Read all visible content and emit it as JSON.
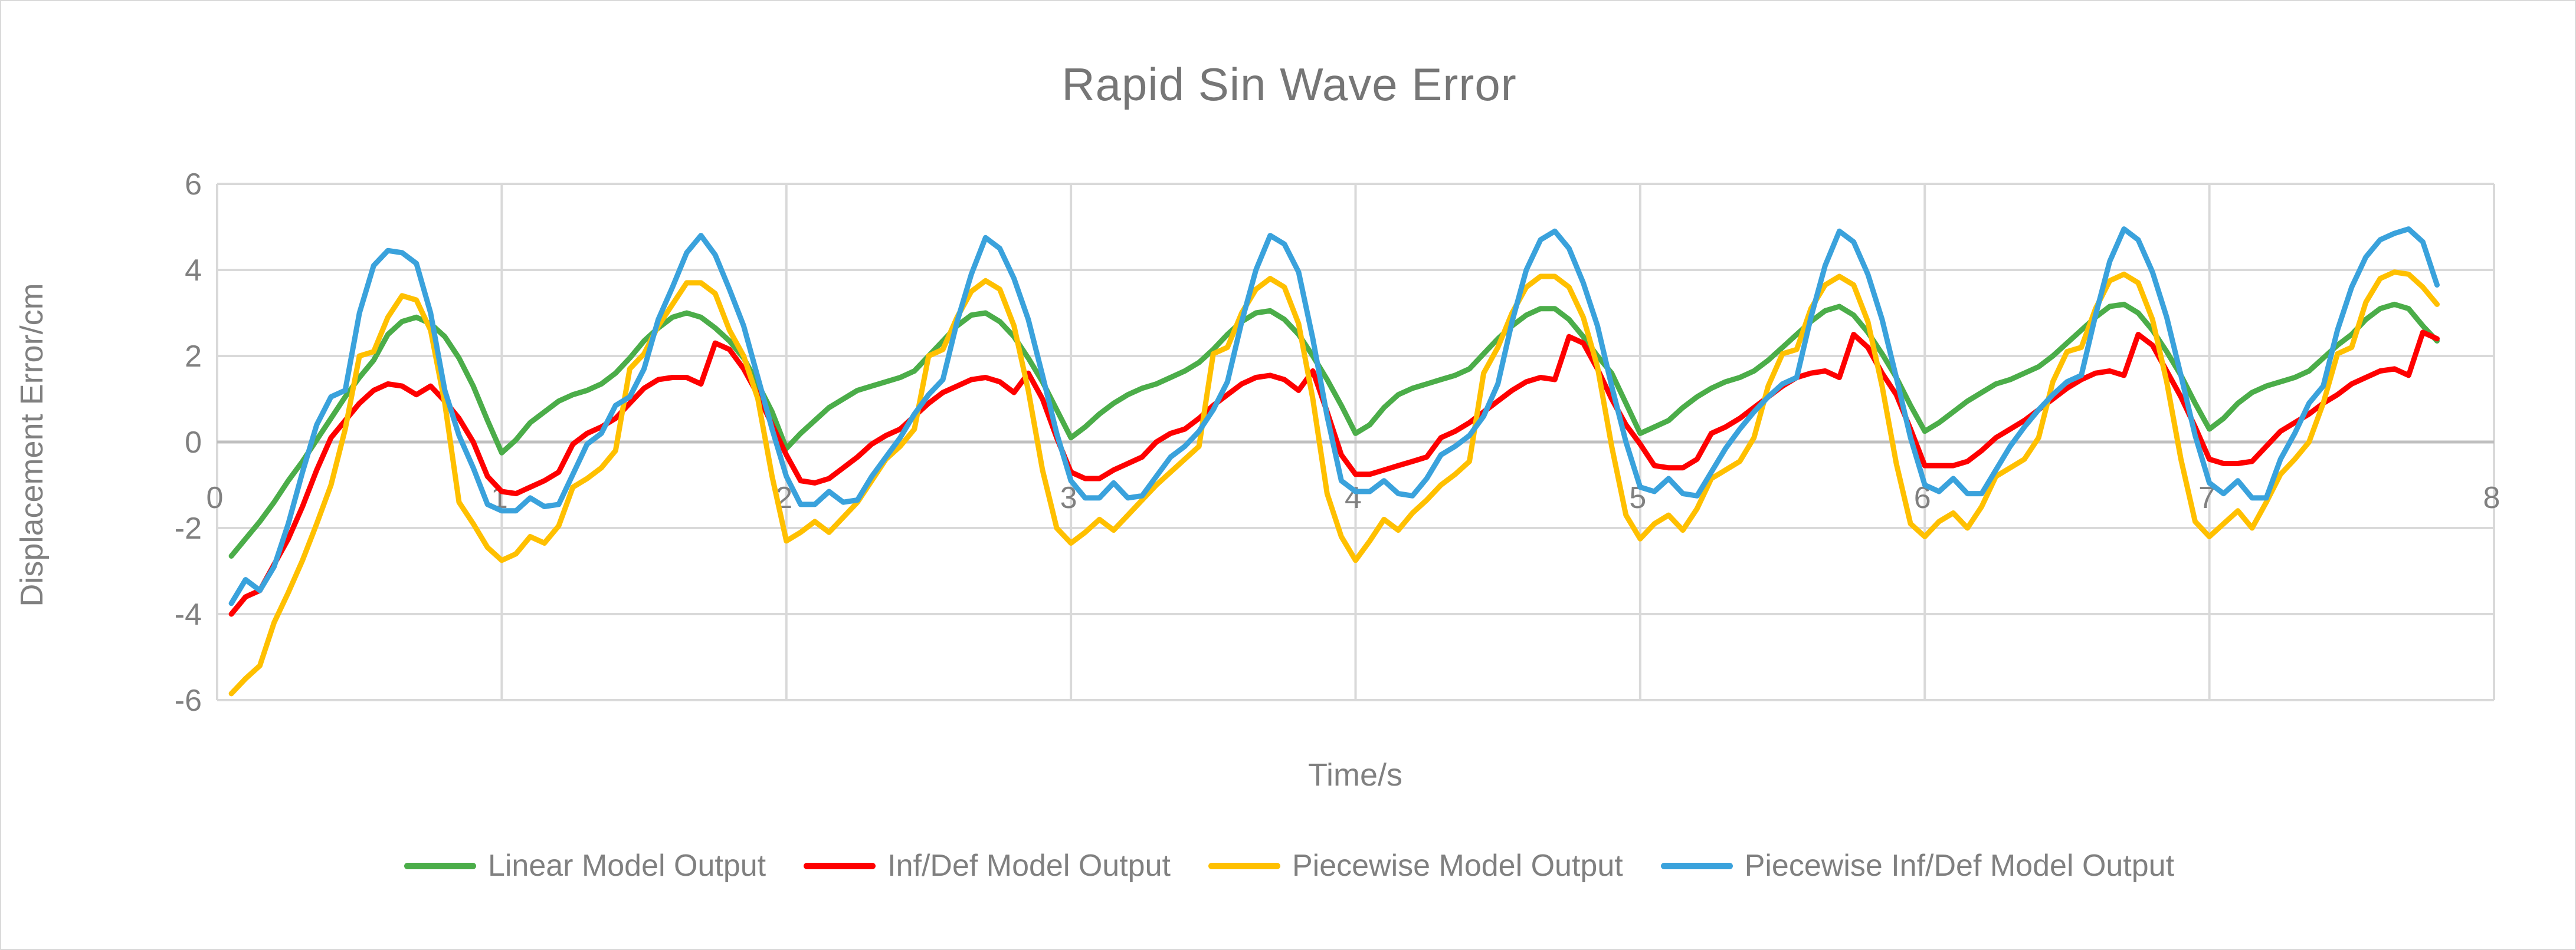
{
  "title": "Rapid Sin Wave Error",
  "colors": {
    "grid": "#d9d9d9",
    "zero_line": "#bfbfbf",
    "text": "#808080",
    "title_text": "#767676",
    "background": "#ffffff",
    "series_green": "#4bad49",
    "series_red": "#fe0000",
    "series_gold": "#ffc000",
    "series_blue": "#3aa2dc"
  },
  "chart_data": {
    "type": "line",
    "title": "Rapid Sin Wave Error",
    "xlabel": "Time/s",
    "ylabel": "Displacement Error/cm",
    "xlim": [
      0,
      8
    ],
    "ylim": [
      -6,
      6
    ],
    "x_ticks": [
      0,
      1,
      2,
      3,
      4,
      5,
      6,
      7,
      8
    ],
    "y_ticks": [
      -6,
      -4,
      -2,
      0,
      2,
      4,
      6
    ],
    "grid": true,
    "legend_position": "bottom",
    "x_start": 0.05,
    "x_step": 0.05,
    "x_end": 7.8,
    "series": [
      {
        "name": "Linear Model Output",
        "color": "#4bad49",
        "values": [
          -2.65,
          -2.25,
          -1.85,
          -1.4,
          -0.9,
          -0.45,
          0.05,
          0.55,
          1.05,
          1.5,
          1.9,
          2.5,
          2.8,
          2.9,
          2.75,
          2.45,
          1.95,
          1.3,
          0.5,
          -0.25,
          0.05,
          0.45,
          0.7,
          0.95,
          1.1,
          1.2,
          1.35,
          1.6,
          1.95,
          2.35,
          2.65,
          2.9,
          3.0,
          2.9,
          2.65,
          2.35,
          1.95,
          1.35,
          0.7,
          -0.15,
          0.2,
          0.5,
          0.8,
          1.0,
          1.2,
          1.3,
          1.4,
          1.5,
          1.65,
          2.0,
          2.35,
          2.7,
          2.95,
          3.0,
          2.8,
          2.45,
          1.95,
          1.4,
          0.75,
          0.1,
          0.35,
          0.65,
          0.9,
          1.1,
          1.25,
          1.35,
          1.5,
          1.65,
          1.85,
          2.15,
          2.5,
          2.8,
          3.0,
          3.05,
          2.85,
          2.5,
          2.0,
          1.45,
          0.85,
          0.2,
          0.4,
          0.8,
          1.1,
          1.25,
          1.35,
          1.45,
          1.55,
          1.7,
          2.05,
          2.4,
          2.7,
          2.95,
          3.1,
          3.1,
          2.85,
          2.45,
          2.0,
          1.6,
          0.9,
          0.2,
          0.35,
          0.5,
          0.8,
          1.05,
          1.25,
          1.4,
          1.5,
          1.65,
          1.9,
          2.2,
          2.5,
          2.8,
          3.05,
          3.15,
          2.95,
          2.55,
          2.05,
          1.5,
          0.85,
          0.25,
          0.45,
          0.7,
          0.95,
          1.15,
          1.35,
          1.45,
          1.6,
          1.75,
          2.0,
          2.3,
          2.6,
          2.9,
          3.15,
          3.2,
          3.0,
          2.6,
          2.1,
          1.55,
          0.9,
          0.3,
          0.55,
          0.9,
          1.15,
          1.3,
          1.4,
          1.5,
          1.65,
          1.95,
          2.25,
          2.5,
          2.85,
          3.1,
          3.2,
          3.1,
          2.7,
          2.35
        ]
      },
      {
        "name": "Inf/Def Model Output",
        "color": "#fe0000",
        "values": [
          -4.0,
          -3.6,
          -3.45,
          -2.85,
          -2.25,
          -1.5,
          -0.65,
          0.1,
          0.5,
          0.9,
          1.2,
          1.35,
          1.3,
          1.1,
          1.3,
          0.95,
          0.55,
          0.0,
          -0.8,
          -1.15,
          -1.2,
          -1.05,
          -0.9,
          -0.7,
          -0.05,
          0.2,
          0.35,
          0.55,
          0.9,
          1.25,
          1.45,
          1.5,
          1.5,
          1.35,
          2.3,
          2.15,
          1.7,
          1.1,
          0.4,
          -0.3,
          -0.9,
          -0.95,
          -0.85,
          -0.6,
          -0.35,
          -0.05,
          0.15,
          0.3,
          0.6,
          0.9,
          1.15,
          1.3,
          1.45,
          1.5,
          1.4,
          1.15,
          1.6,
          1.0,
          0.1,
          -0.7,
          -0.85,
          -0.85,
          -0.65,
          -0.5,
          -0.35,
          0.0,
          0.2,
          0.3,
          0.55,
          0.85,
          1.1,
          1.35,
          1.5,
          1.55,
          1.45,
          1.2,
          1.65,
          0.7,
          -0.3,
          -0.75,
          -0.75,
          -0.65,
          -0.55,
          -0.45,
          -0.35,
          0.1,
          0.25,
          0.45,
          0.7,
          0.95,
          1.2,
          1.4,
          1.5,
          1.45,
          2.45,
          2.3,
          1.7,
          1.0,
          0.4,
          -0.05,
          -0.55,
          -0.6,
          -0.6,
          -0.4,
          0.2,
          0.35,
          0.55,
          0.8,
          1.05,
          1.3,
          1.5,
          1.6,
          1.65,
          1.5,
          2.5,
          2.2,
          1.6,
          1.1,
          0.3,
          -0.55,
          -0.55,
          -0.55,
          -0.45,
          -0.2,
          0.1,
          0.3,
          0.5,
          0.75,
          1.0,
          1.25,
          1.45,
          1.6,
          1.65,
          1.55,
          2.5,
          2.25,
          1.65,
          1.05,
          0.35,
          -0.4,
          -0.5,
          -0.5,
          -0.45,
          -0.1,
          0.25,
          0.45,
          0.65,
          0.9,
          1.1,
          1.35,
          1.5,
          1.65,
          1.7,
          1.55,
          2.55,
          2.4
        ]
      },
      {
        "name": "Piecewise Model Output",
        "color": "#ffc000",
        "values": [
          -5.85,
          -5.5,
          -5.2,
          -4.2,
          -3.5,
          -2.75,
          -1.9,
          -1.0,
          0.3,
          2.0,
          2.1,
          2.9,
          3.4,
          3.3,
          2.6,
          0.9,
          -1.4,
          -1.9,
          -2.45,
          -2.75,
          -2.6,
          -2.2,
          -2.35,
          -1.95,
          -1.05,
          -0.85,
          -0.6,
          -0.2,
          1.7,
          2.05,
          2.7,
          3.2,
          3.7,
          3.7,
          3.45,
          2.6,
          2.0,
          1.0,
          -0.8,
          -2.3,
          -2.1,
          -1.85,
          -2.1,
          -1.75,
          -1.4,
          -0.9,
          -0.4,
          -0.1,
          0.3,
          2.0,
          2.15,
          2.9,
          3.5,
          3.75,
          3.55,
          2.7,
          1.2,
          -0.65,
          -2.0,
          -2.35,
          -2.1,
          -1.8,
          -2.05,
          -1.7,
          -1.35,
          -1.0,
          -0.7,
          -0.4,
          -0.1,
          2.05,
          2.2,
          3.0,
          3.55,
          3.8,
          3.6,
          2.75,
          1.0,
          -1.2,
          -2.2,
          -2.75,
          -2.3,
          -1.8,
          -2.05,
          -1.65,
          -1.35,
          -1.0,
          -0.75,
          -0.45,
          1.6,
          2.2,
          3.0,
          3.6,
          3.85,
          3.85,
          3.6,
          2.9,
          1.75,
          -0.1,
          -1.7,
          -2.25,
          -1.9,
          -1.7,
          -2.05,
          -1.55,
          -0.85,
          -0.65,
          -0.45,
          0.1,
          1.3,
          2.05,
          2.15,
          3.1,
          3.65,
          3.85,
          3.65,
          2.8,
          1.3,
          -0.5,
          -1.9,
          -2.2,
          -1.85,
          -1.65,
          -2.0,
          -1.5,
          -0.8,
          -0.6,
          -0.4,
          0.1,
          1.4,
          2.1,
          2.2,
          3.1,
          3.75,
          3.9,
          3.7,
          2.85,
          1.4,
          -0.4,
          -1.85,
          -2.2,
          -1.9,
          -1.6,
          -2.0,
          -1.4,
          -0.75,
          -0.4,
          0.0,
          0.9,
          2.05,
          2.2,
          3.25,
          3.8,
          3.95,
          3.9,
          3.6,
          3.2
        ]
      },
      {
        "name": "Piecewise Inf/Def Model Output",
        "color": "#3aa2dc",
        "values": [
          -3.75,
          -3.2,
          -3.45,
          -2.9,
          -1.9,
          -0.7,
          0.4,
          1.05,
          1.2,
          3.0,
          4.1,
          4.45,
          4.4,
          4.15,
          3.0,
          1.2,
          0.15,
          -0.6,
          -1.45,
          -1.6,
          -1.6,
          -1.3,
          -1.5,
          -1.45,
          -0.75,
          -0.05,
          0.2,
          0.85,
          1.05,
          1.7,
          2.85,
          3.6,
          4.4,
          4.8,
          4.35,
          3.55,
          2.7,
          1.5,
          0.3,
          -0.8,
          -1.45,
          -1.45,
          -1.15,
          -1.4,
          -1.35,
          -0.8,
          -0.35,
          0.1,
          0.65,
          1.1,
          1.45,
          2.8,
          3.9,
          4.75,
          4.5,
          3.8,
          2.85,
          1.55,
          0.2,
          -0.9,
          -1.3,
          -1.3,
          -0.95,
          -1.3,
          -1.25,
          -0.8,
          -0.35,
          -0.1,
          0.25,
          0.75,
          1.4,
          2.8,
          4.0,
          4.8,
          4.6,
          3.95,
          2.4,
          0.6,
          -0.9,
          -1.15,
          -1.15,
          -0.9,
          -1.2,
          -1.25,
          -0.85,
          -0.3,
          -0.1,
          0.15,
          0.6,
          1.35,
          2.8,
          4.0,
          4.7,
          4.9,
          4.5,
          3.7,
          2.7,
          1.3,
          0.0,
          -1.05,
          -1.15,
          -0.85,
          -1.2,
          -1.25,
          -0.7,
          -0.15,
          0.3,
          0.7,
          1.05,
          1.35,
          1.5,
          2.9,
          4.1,
          4.9,
          4.65,
          3.9,
          2.85,
          1.5,
          0.1,
          -1.0,
          -1.15,
          -0.85,
          -1.2,
          -1.2,
          -0.65,
          -0.1,
          0.35,
          0.75,
          1.1,
          1.4,
          1.55,
          2.95,
          4.2,
          4.95,
          4.7,
          3.95,
          2.9,
          1.55,
          0.15,
          -0.95,
          -1.2,
          -0.9,
          -1.3,
          -1.3,
          -0.4,
          0.2,
          0.9,
          1.3,
          2.6,
          3.6,
          4.3,
          4.7,
          4.85,
          4.95,
          4.65,
          3.65
        ]
      }
    ]
  }
}
